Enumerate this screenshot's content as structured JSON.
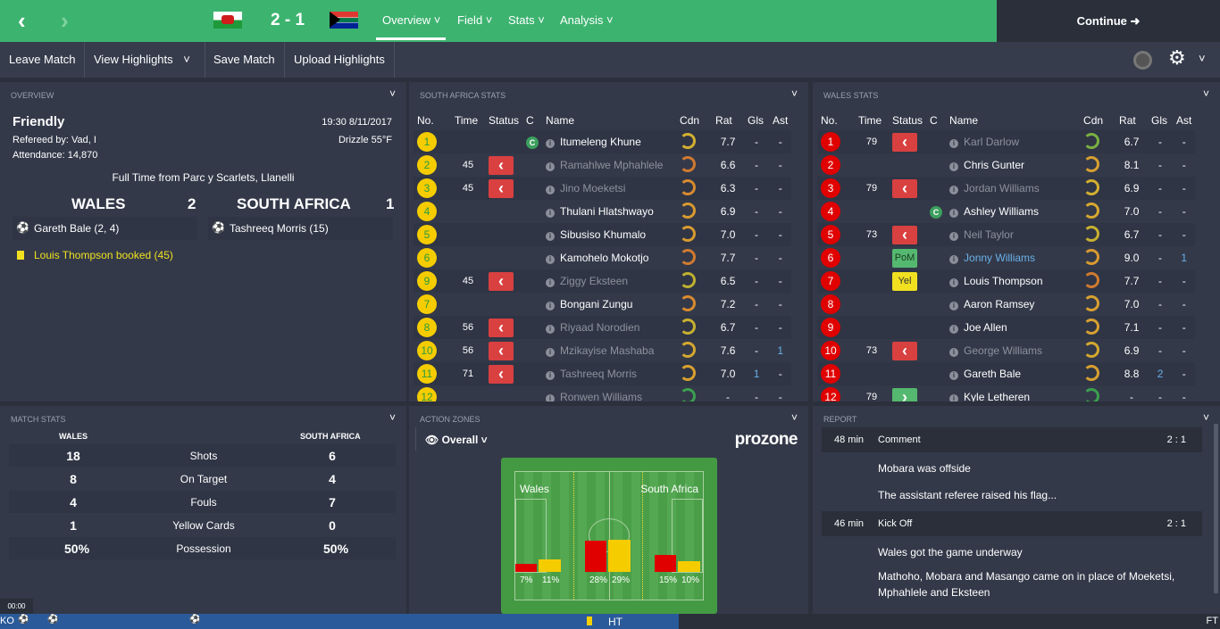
{
  "header": {
    "back": "‹",
    "forward": "›",
    "score": "2 - 1",
    "home_flag": "wales-flag",
    "away_flag": "south-africa-flag",
    "menus": [
      "Overview",
      "Field",
      "Stats",
      "Analysis"
    ],
    "active_menu": "Overview",
    "continue": "Continue",
    "accent": "#3db370"
  },
  "toolbar": {
    "items": [
      "Leave Match",
      "View Highlights",
      "Save Match",
      "Upload Highlights"
    ]
  },
  "overview": {
    "title": "OVERVIEW",
    "competition": "Friendly",
    "referee": "Refereed by: Vad, I",
    "attendance": "Attendance: 14,870",
    "datetime": "19:30 8/11/2017",
    "weather": "Drizzle 55°F",
    "venue": "Full Time from Parc y Scarlets, Llanelli",
    "home": "WALES",
    "home_score": "2",
    "away": "SOUTH AFRICA",
    "away_score": "1",
    "home_scorers": "Gareth Bale (2, 4)",
    "away_scorers": "Tashreeq Morris (15)",
    "booking": "Louis Thompson booked (45)"
  },
  "columns": [
    "No.",
    "Time",
    "Status",
    "C",
    "Name",
    "Cdn",
    "Rat",
    "Gls",
    "Ast"
  ],
  "sa_stats": {
    "title": "SOUTH AFRICA STATS",
    "rows": [
      [
        "1",
        "",
        "",
        "C",
        "Itumeleng Khune",
        "7.7",
        "-",
        "-",
        "#d4b030",
        false
      ],
      [
        "2",
        "45",
        "sub-off",
        "",
        "Ramahlwe Mphahlele",
        "6.6",
        "-",
        "-",
        "#d07a30",
        true
      ],
      [
        "3",
        "45",
        "sub-off",
        "",
        "Jino Moeketsi",
        "6.3",
        "-",
        "-",
        "#d88a30",
        true
      ],
      [
        "4",
        "",
        "",
        "",
        "Thulani Hlatshwayo",
        "6.9",
        "-",
        "-",
        "#d89a30",
        false
      ],
      [
        "5",
        "",
        "",
        "",
        "Sibusiso Khumalo",
        "7.0",
        "-",
        "-",
        "#d89a30",
        false
      ],
      [
        "6",
        "",
        "",
        "",
        "Kamohelo Mokotjo",
        "7.7",
        "-",
        "-",
        "#d07a30",
        false
      ],
      [
        "9",
        "45",
        "sub-off",
        "",
        "Ziggy Eksteen",
        "6.5",
        "-",
        "-",
        "#c0b030",
        true
      ],
      [
        "7",
        "",
        "",
        "",
        "Bongani Zungu",
        "7.2",
        "-",
        "-",
        "#d88a30",
        false
      ],
      [
        "8",
        "56",
        "sub-off",
        "",
        "Riyaad Norodien",
        "6.7",
        "-",
        "-",
        "#c8b030",
        true
      ],
      [
        "10",
        "56",
        "sub-off",
        "",
        "Mzikayise Mashaba",
        "7.6",
        "-",
        "1",
        "#d4a830",
        true
      ],
      [
        "11",
        "71",
        "sub-off",
        "",
        "Tashreeq Morris",
        "7.0",
        "1",
        "-",
        "#d8a030",
        true
      ],
      [
        "12",
        "",
        "",
        "",
        "Ronwen Williams",
        "-",
        "-",
        "-",
        "#3ca050",
        true
      ]
    ]
  },
  "wales_stats": {
    "title": "WALES STATS",
    "rows": [
      [
        "1",
        "79",
        "sub-off",
        "",
        "Karl Darlow",
        "6.7",
        "-",
        "-",
        "#7ab040",
        true
      ],
      [
        "2",
        "",
        "",
        "",
        "Chris Gunter",
        "8.1",
        "-",
        "-",
        "#d8a030",
        false
      ],
      [
        "3",
        "79",
        "sub-off",
        "",
        "Jordan Williams",
        "6.9",
        "-",
        "-",
        "#d4b030",
        true
      ],
      [
        "4",
        "",
        "",
        "C",
        "Ashley Williams",
        "7.0",
        "-",
        "-",
        "#d8a830",
        false
      ],
      [
        "5",
        "73",
        "sub-off",
        "",
        "Neil Taylor",
        "6.7",
        "-",
        "-",
        "#c8b030",
        true
      ],
      [
        "6",
        "",
        "PoM",
        "",
        "Jonny Williams",
        "9.0",
        "-",
        "1",
        "#d89a30",
        false
      ],
      [
        "7",
        "",
        "Yel",
        "",
        "Louis Thompson",
        "7.7",
        "-",
        "-",
        "#d07a30",
        false
      ],
      [
        "8",
        "",
        "",
        "",
        "Aaron Ramsey",
        "7.0",
        "-",
        "-",
        "#d8a030",
        false
      ],
      [
        "9",
        "",
        "",
        "",
        "Joe Allen",
        "7.1",
        "-",
        "-",
        "#d8a030",
        false
      ],
      [
        "10",
        "73",
        "sub-off",
        "",
        "George Williams",
        "6.9",
        "-",
        "-",
        "#d4a830",
        true
      ],
      [
        "11",
        "",
        "",
        "",
        "Gareth Bale",
        "8.8",
        "2",
        "-",
        "#d8a030",
        false
      ],
      [
        "12",
        "79",
        "sub-on",
        "",
        "Kyle Letheren",
        "-",
        "-",
        "-",
        "#3ca050",
        false
      ]
    ]
  },
  "match_stats": {
    "title": "MATCH STATS",
    "home": "WALES",
    "away": "SOUTH AFRICA",
    "rows": [
      [
        "18",
        "Shots",
        "6"
      ],
      [
        "8",
        "On Target",
        "4"
      ],
      [
        "4",
        "Fouls",
        "7"
      ],
      [
        "1",
        "Yellow Cards",
        "0"
      ],
      [
        "50%",
        "Possession",
        "50%"
      ]
    ]
  },
  "action_zones": {
    "title": "ACTION ZONES",
    "view": "Overall",
    "logo": "prozone",
    "home": "Wales",
    "away": "South Africa",
    "home_color": "#e00000",
    "away_color": "#f5cc00",
    "zones": [
      {
        "home": 7,
        "away": 11
      },
      {
        "home": 28,
        "away": 29
      },
      {
        "home": 15,
        "away": 10
      }
    ],
    "labels": [
      [
        "7%",
        "11%"
      ],
      [
        "28%",
        "29%"
      ],
      [
        "15%",
        "10%"
      ]
    ]
  },
  "report": {
    "title": "REPORT",
    "events": [
      {
        "time": "48 min",
        "type": "Comment",
        "score": "2 : 1",
        "lines": [
          "Mobara was offside",
          "The assistant referee raised his flag..."
        ]
      },
      {
        "time": "46 min",
        "type": "Kick Off",
        "score": "2 : 1",
        "lines": [
          "Wales got the game underway",
          "Mathoho, Mobara and Masango came on in place of Moeketsi,",
          "Mphahlele and Eksteen"
        ]
      }
    ]
  },
  "timeline": {
    "clock": "00:00",
    "ko": "KO",
    "ht": "HT",
    "ft": "FT"
  }
}
